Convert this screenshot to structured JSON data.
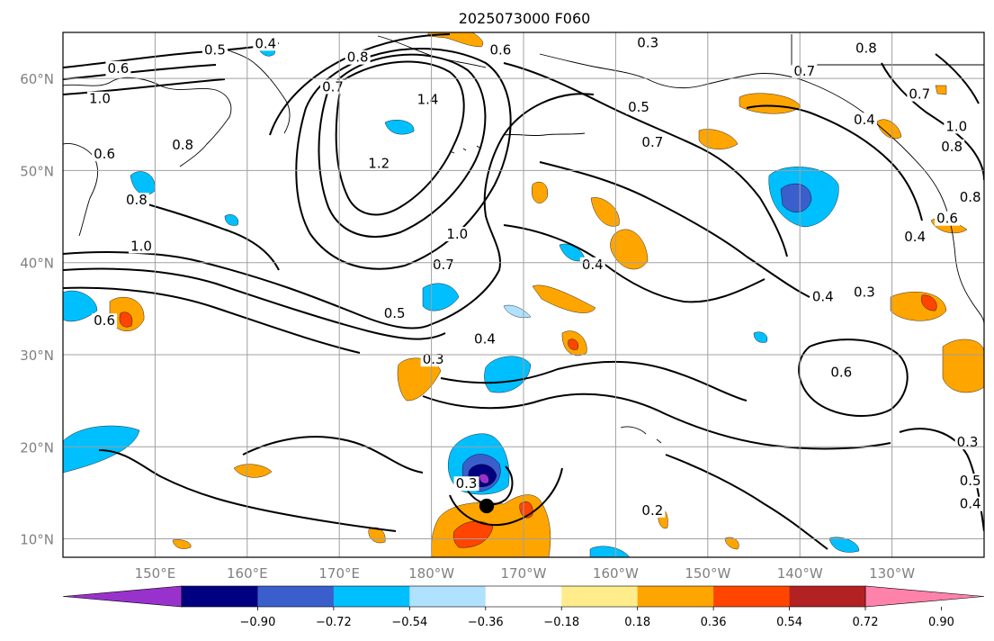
{
  "title": "2025073000 F060",
  "map": {
    "lon_range": [
      140,
      240
    ],
    "lat_range": [
      8,
      65
    ],
    "grid_lons": [
      150,
      160,
      170,
      180,
      190,
      200,
      210,
      220,
      230
    ],
    "grid_lats": [
      10,
      20,
      30,
      40,
      50,
      60
    ],
    "lon_labels": [
      "150°E",
      "160°E",
      "170°E",
      "180°W",
      "170°W",
      "160°W",
      "150°W",
      "140°W",
      "130°W"
    ],
    "lat_labels": [
      "10°N",
      "20°N",
      "30°N",
      "40°N",
      "50°N",
      "60°N"
    ],
    "grid_color": "#a0a0a0"
  },
  "colorbar": {
    "tick_labels": [
      "−0.90",
      "−0.72",
      "−0.54",
      "−0.36",
      "−0.18",
      "0.18",
      "0.36",
      "0.54",
      "0.72",
      "0.90"
    ],
    "colors": [
      "#9932cc",
      "#000080",
      "#3a5fcd",
      "#00bfff",
      "#b0e2ff",
      "#ffffff",
      "#ffec8b",
      "#ffa500",
      "#ff4500",
      "#b22222",
      "#ff82ab"
    ]
  },
  "contour_labels": [
    {
      "text": "0.4",
      "lon": 162,
      "lat": 63.5
    },
    {
      "text": "0.5",
      "lon": 156.5,
      "lat": 62.8
    },
    {
      "text": "0.6",
      "lon": 146,
      "lat": 60.8
    },
    {
      "text": "1.0",
      "lon": 144,
      "lat": 57.5
    },
    {
      "text": "0.6",
      "lon": 144.5,
      "lat": 51.5
    },
    {
      "text": "0.8",
      "lon": 153,
      "lat": 52.5
    },
    {
      "text": "0.8",
      "lon": 148,
      "lat": 46.5
    },
    {
      "text": "1.0",
      "lon": 148.5,
      "lat": 41.5
    },
    {
      "text": "0.8",
      "lon": 172,
      "lat": 62
    },
    {
      "text": "0.7",
      "lon": 169.3,
      "lat": 58.8
    },
    {
      "text": "1.4",
      "lon": 179.6,
      "lat": 57.4
    },
    {
      "text": "1.2",
      "lon": 174.3,
      "lat": 50.5
    },
    {
      "text": "1.0",
      "lon": 182.8,
      "lat": 42.8
    },
    {
      "text": "0.7",
      "lon": 181.3,
      "lat": 39.5
    },
    {
      "text": "0.5",
      "lon": 176,
      "lat": 34.2
    },
    {
      "text": "0.6",
      "lon": 187.5,
      "lat": 62.8
    },
    {
      "text": "0.6",
      "lon": 144.5,
      "lat": 33.4
    },
    {
      "text": "0.3",
      "lon": 180.2,
      "lat": 29.2
    },
    {
      "text": "0.4",
      "lon": 185.8,
      "lat": 31.4
    },
    {
      "text": "0.4",
      "lon": 197.5,
      "lat": 39.5
    },
    {
      "text": "0.7",
      "lon": 204,
      "lat": 52.8
    },
    {
      "text": "0.5",
      "lon": 202.5,
      "lat": 56.6
    },
    {
      "text": "0.3",
      "lon": 203.5,
      "lat": 63.6
    },
    {
      "text": "0.7",
      "lon": 220.5,
      "lat": 60.5
    },
    {
      "text": "0.8",
      "lon": 227.2,
      "lat": 63
    },
    {
      "text": "0.4",
      "lon": 227,
      "lat": 55.2
    },
    {
      "text": "0.4",
      "lon": 232.5,
      "lat": 42.5
    },
    {
      "text": "0.4",
      "lon": 222.5,
      "lat": 36
    },
    {
      "text": "0.3",
      "lon": 227,
      "lat": 36.5
    },
    {
      "text": "0.6",
      "lon": 224.5,
      "lat": 27.8
    },
    {
      "text": "0.2",
      "lon": 204,
      "lat": 12.8
    },
    {
      "text": "0.3",
      "lon": 183.8,
      "lat": 15.7
    },
    {
      "text": "0.3",
      "lon": 238.2,
      "lat": 20.2
    },
    {
      "text": "0.5",
      "lon": 238.5,
      "lat": 16
    },
    {
      "text": "0.4",
      "lon": 238.5,
      "lat": 13.5
    },
    {
      "text": "0.7",
      "lon": 233,
      "lat": 58
    },
    {
      "text": "1.0",
      "lon": 237,
      "lat": 54.5
    },
    {
      "text": "0.8",
      "lon": 236.5,
      "lat": 52.3
    },
    {
      "text": "0.8",
      "lon": 238.5,
      "lat": 46.8
    },
    {
      "text": "0.6",
      "lon": 236,
      "lat": 44.5
    }
  ]
}
